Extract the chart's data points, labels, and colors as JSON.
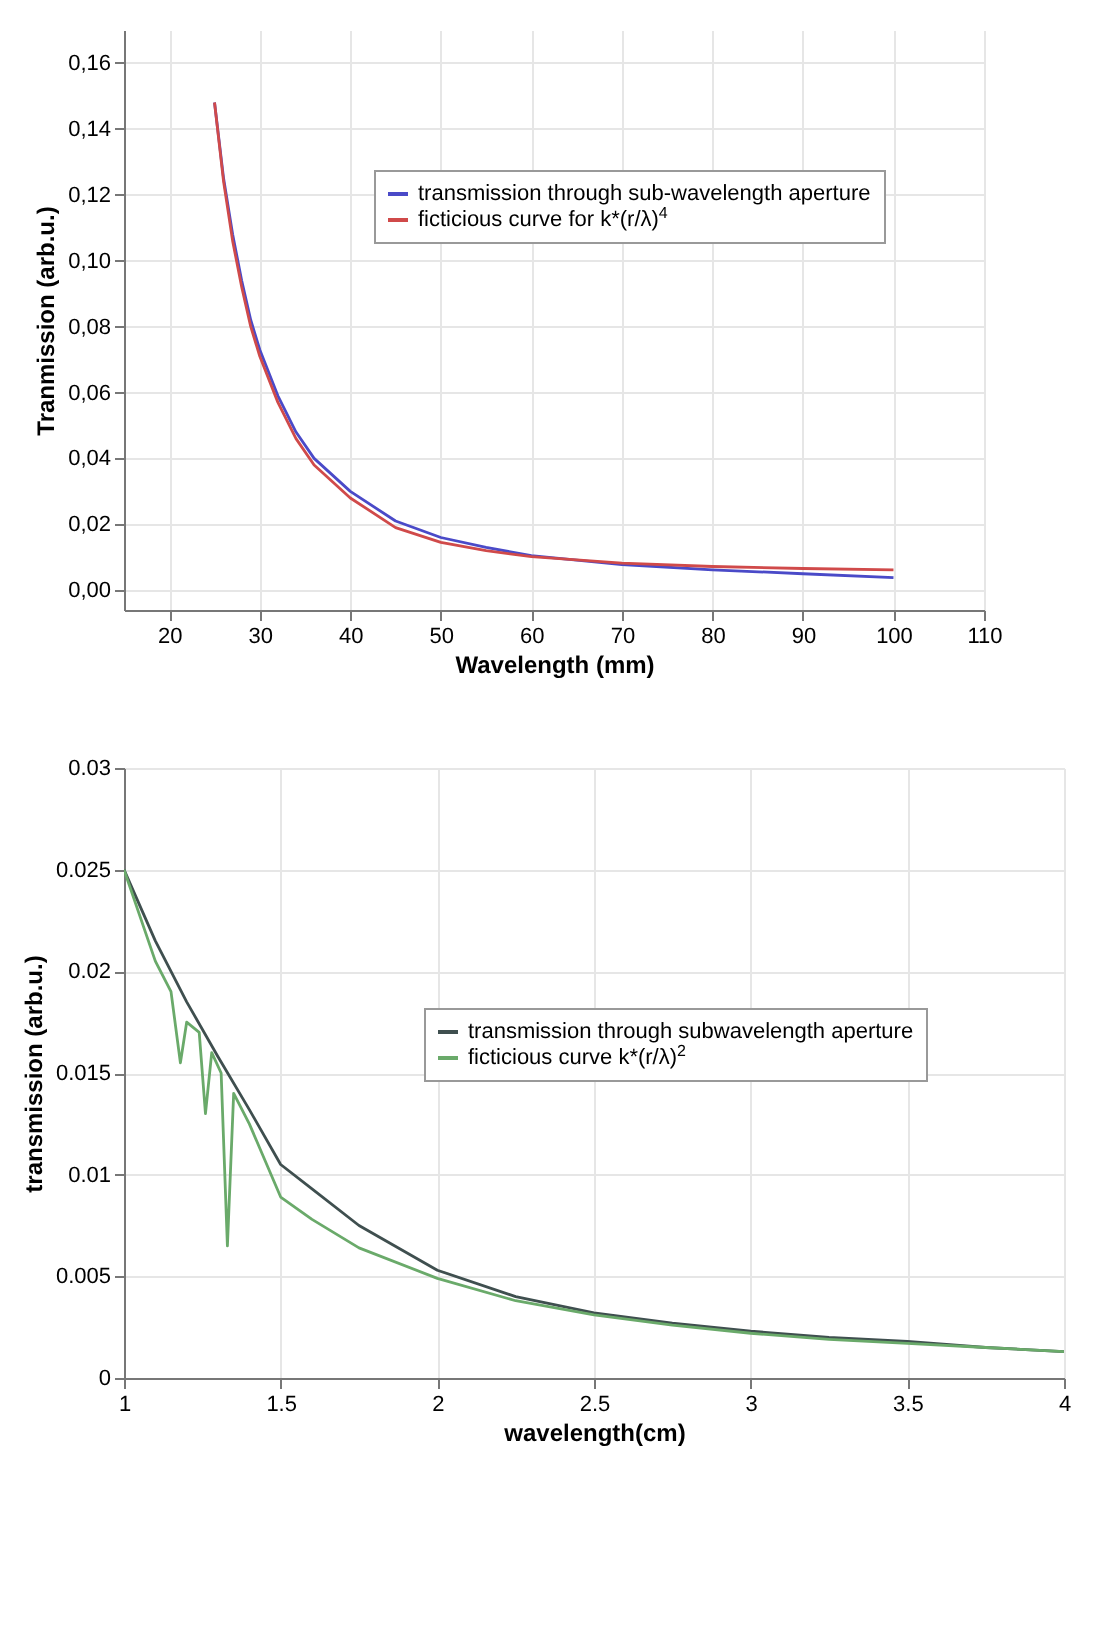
{
  "chart_data": [
    {
      "type": "line",
      "xlabel": "Wavelength (mm)",
      "ylabel": "Tranmission (arb.u.)",
      "xlim": [
        15,
        110
      ],
      "xticks": [
        20,
        30,
        40,
        50,
        60,
        70,
        80,
        90,
        100,
        110
      ],
      "ylim": [
        -0.006,
        0.17
      ],
      "yticks": [
        {
          "value": 0,
          "label": "0,00"
        },
        {
          "value": 0.02,
          "label": "0,02"
        },
        {
          "value": 0.04,
          "label": "0,04"
        },
        {
          "value": 0.06,
          "label": "0,06"
        },
        {
          "value": 0.08,
          "label": "0,08"
        },
        {
          "value": 0.1,
          "label": "0,10"
        },
        {
          "value": 0.12,
          "label": "0,12"
        },
        {
          "value": 0.14,
          "label": "0,14"
        },
        {
          "value": 0.16,
          "label": "0,16"
        }
      ],
      "grid": true,
      "legend": "top right",
      "marker": "none",
      "line_style": "solid",
      "series": [
        {
          "name": "transmission through sub-wavelength aperture",
          "color": "#4a4ac8",
          "x": [
            25,
            26,
            27,
            28,
            29,
            30,
            32,
            34,
            36,
            40,
            45,
            50,
            55,
            60,
            70,
            80,
            90,
            100
          ],
          "values": [
            0.148,
            0.125,
            0.108,
            0.094,
            0.082,
            0.073,
            0.059,
            0.048,
            0.04,
            0.03,
            0.021,
            0.016,
            0.013,
            0.0105,
            0.0078,
            0.0062,
            0.005,
            0.0038
          ]
        },
        {
          "name": "ficticious curve for k*(r/λ)$^{4}$",
          "color": "#d04a4a",
          "x": [
            25,
            26,
            27,
            28,
            29,
            30,
            32,
            34,
            36,
            40,
            45,
            50,
            55,
            60,
            70,
            80,
            90,
            100
          ],
          "values": [
            0.148,
            0.124,
            0.106,
            0.092,
            0.08,
            0.071,
            0.057,
            0.046,
            0.038,
            0.028,
            0.019,
            0.0145,
            0.012,
            0.0102,
            0.0082,
            0.0072,
            0.0066,
            0.0062
          ]
        }
      ]
    },
    {
      "type": "line",
      "xlabel": "wavelength(cm)",
      "ylabel": "transmission (arb.u.)",
      "xlim": [
        1,
        4
      ],
      "xticks": [
        1,
        1.5,
        2,
        2.5,
        3,
        3.5,
        4
      ],
      "ylim": [
        0,
        0.03
      ],
      "yticks": [
        0,
        0.005,
        0.01,
        0.015,
        0.02,
        0.025,
        0.03
      ],
      "grid": true,
      "legend": "top right",
      "marker": "none",
      "line_style": "solid",
      "series": [
        {
          "name": "transmission through subwavelength aperture",
          "color": "#3f4f4f",
          "x": [
            1,
            1.1,
            1.2,
            1.3,
            1.4,
            1.5,
            1.6,
            1.75,
            2,
            2.25,
            2.5,
            2.75,
            3,
            3.25,
            3.5,
            3.75,
            4
          ],
          "values": [
            0.025,
            0.0215,
            0.0185,
            0.0158,
            0.0132,
            0.0105,
            0.0093,
            0.0075,
            0.0053,
            0.004,
            0.0032,
            0.0027,
            0.0023,
            0.002,
            0.0018,
            0.0015,
            0.0013
          ]
        },
        {
          "name": "ficticious curve k*(r/λ)$^{2}$",
          "color": "#6aaa6a",
          "x": [
            1,
            1.1,
            1.15,
            1.18,
            1.2,
            1.24,
            1.26,
            1.28,
            1.31,
            1.33,
            1.35,
            1.4,
            1.5,
            1.6,
            1.75,
            2,
            2.25,
            2.5,
            2.75,
            3,
            3.25,
            3.5,
            3.75,
            4
          ],
          "values": [
            0.025,
            0.0205,
            0.019,
            0.0155,
            0.0175,
            0.017,
            0.013,
            0.016,
            0.015,
            0.0065,
            0.014,
            0.0125,
            0.0089,
            0.0078,
            0.0064,
            0.0049,
            0.0038,
            0.0031,
            0.0026,
            0.0022,
            0.0019,
            0.0017,
            0.0015,
            0.0013
          ]
        }
      ]
    }
  ]
}
